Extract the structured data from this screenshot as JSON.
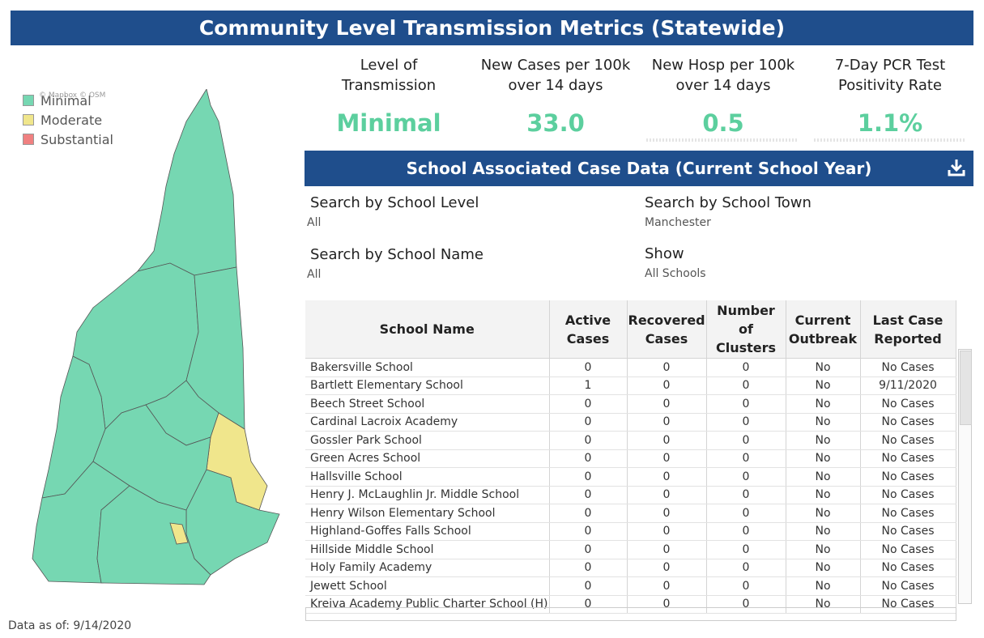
{
  "title": "Community Level Transmission Metrics (Statewide)",
  "legend": [
    {
      "label": "Minimal",
      "color": "#76d7b2"
    },
    {
      "label": "Moderate",
      "color": "#f0e68c"
    },
    {
      "label": "Substantial",
      "color": "#f08080"
    }
  ],
  "map_attribution": "© Mapbox © OSM",
  "metrics": [
    {
      "label_line1": "Level of",
      "label_line2": "Transmission",
      "value": "Minimal"
    },
    {
      "label_line1": "New Cases per 100k",
      "label_line2": "over 14 days",
      "value": "33.0"
    },
    {
      "label_line1": "New Hosp per 100k",
      "label_line2": "over 14 days",
      "value": "0.5"
    },
    {
      "label_line1": "7-Day PCR Test",
      "label_line2": "Positivity Rate",
      "value": "1.1%"
    }
  ],
  "section_title": "School Associated Case Data (Current School Year)",
  "download_icon": "download-icon",
  "filters": {
    "school_level": {
      "label": "Search by School Level",
      "value": "All"
    },
    "school_town": {
      "label": "Search by School Town",
      "value": "Manchester"
    },
    "school_name": {
      "label": "Search by School Name",
      "value": "All"
    },
    "show": {
      "label": "Show",
      "value": "All Schools"
    }
  },
  "table": {
    "headers": {
      "name": "School Name",
      "active_1": "Active",
      "active_2": "Cases",
      "recovered_1": "Recovered",
      "recovered_2": "Cases",
      "clusters_1": "Number of",
      "clusters_2": "Clusters",
      "outbreak_1": "Current",
      "outbreak_2": "Outbreak",
      "last_1": "Last Case",
      "last_2": "Reported"
    },
    "rows": [
      [
        "Bakersville School",
        "0",
        "0",
        "0",
        "No",
        "No Cases"
      ],
      [
        "Bartlett Elementary School",
        "1",
        "0",
        "0",
        "No",
        "9/11/2020"
      ],
      [
        "Beech Street School",
        "0",
        "0",
        "0",
        "No",
        "No Cases"
      ],
      [
        "Cardinal Lacroix Academy",
        "0",
        "0",
        "0",
        "No",
        "No Cases"
      ],
      [
        "Gossler Park School",
        "0",
        "0",
        "0",
        "No",
        "No Cases"
      ],
      [
        "Green Acres School",
        "0",
        "0",
        "0",
        "No",
        "No Cases"
      ],
      [
        "Hallsville School",
        "0",
        "0",
        "0",
        "No",
        "No Cases"
      ],
      [
        "Henry J. McLaughlin Jr. Middle School",
        "0",
        "0",
        "0",
        "No",
        "No Cases"
      ],
      [
        "Henry Wilson Elementary School",
        "0",
        "0",
        "0",
        "No",
        "No Cases"
      ],
      [
        "Highland-Goffes Falls School",
        "0",
        "0",
        "0",
        "No",
        "No Cases"
      ],
      [
        "Hillside Middle School",
        "0",
        "0",
        "0",
        "No",
        "No Cases"
      ],
      [
        "Holy Family Academy",
        "0",
        "0",
        "0",
        "No",
        "No Cases"
      ],
      [
        "Jewett School",
        "0",
        "0",
        "0",
        "No",
        "No Cases"
      ],
      [
        "Kreiva Academy Public Charter School (H)",
        "0",
        "0",
        "0",
        "No",
        "No Cases"
      ]
    ]
  },
  "data_as_of": "Data as of: 9/14/2020"
}
